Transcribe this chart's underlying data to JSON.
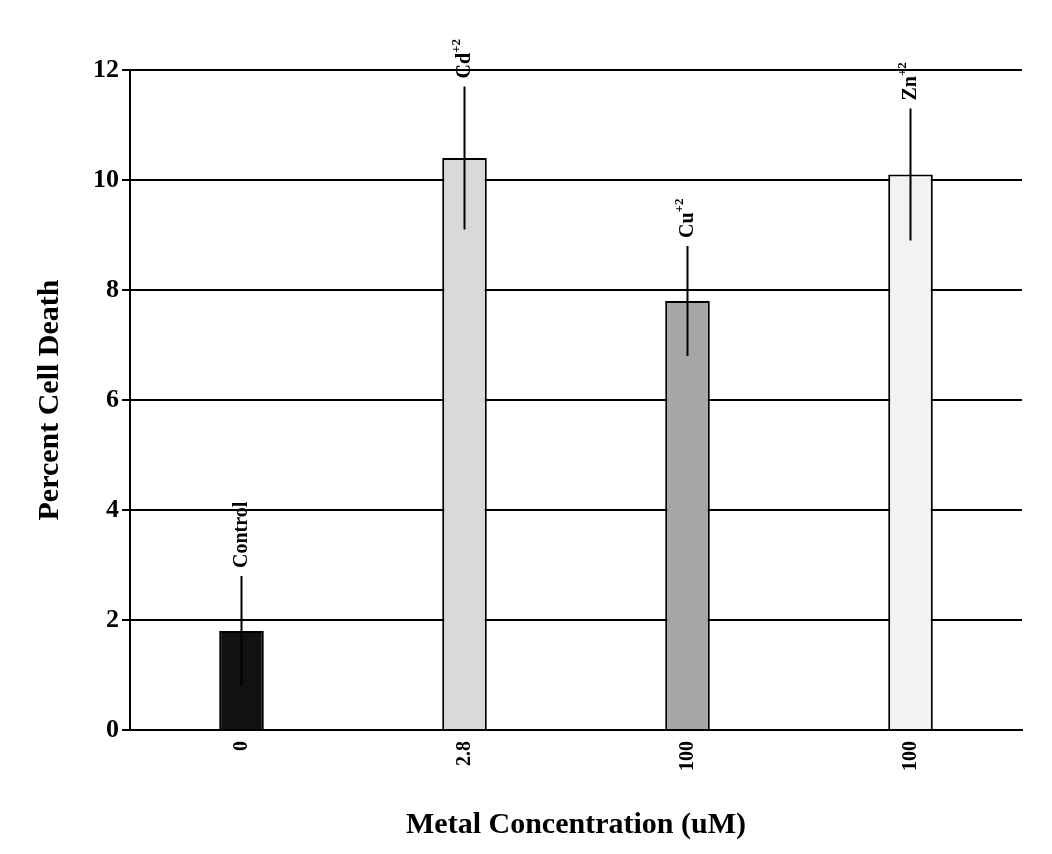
{
  "chart_data": {
    "type": "bar",
    "xlabel": "Metal Concentration (uM)",
    "ylabel": "Percent Cell Death",
    "categories": [
      "0",
      "2.8",
      "100",
      "100"
    ],
    "stacked": true,
    "series": [
      {
        "name": "Control",
        "color": "#111111",
        "values": [
          1.8,
          null,
          null,
          null
        ],
        "errors": [
          1.0,
          null,
          null,
          null
        ]
      },
      {
        "name": "Cd$^{+2}$",
        "color": "#d9d9d9",
        "values": [
          null,
          10.4,
          null,
          null
        ],
        "errors": [
          null,
          1.3,
          null,
          null
        ]
      },
      {
        "name": "Cu$^{+2}$",
        "color": "#a6a6a6",
        "values": [
          null,
          null,
          7.8,
          null
        ],
        "errors": [
          null,
          null,
          1.0,
          null
        ]
      },
      {
        "name": "Zn$^{+2}$",
        "color": "#f2f2f2",
        "values": [
          null,
          null,
          null,
          10.1
        ],
        "errors": [
          null,
          null,
          null,
          1.2
        ]
      }
    ],
    "ylim": [
      0,
      12
    ],
    "yticks": [
      0,
      2,
      4,
      6,
      8,
      10,
      12
    ],
    "grid": "y",
    "legend": false
  }
}
